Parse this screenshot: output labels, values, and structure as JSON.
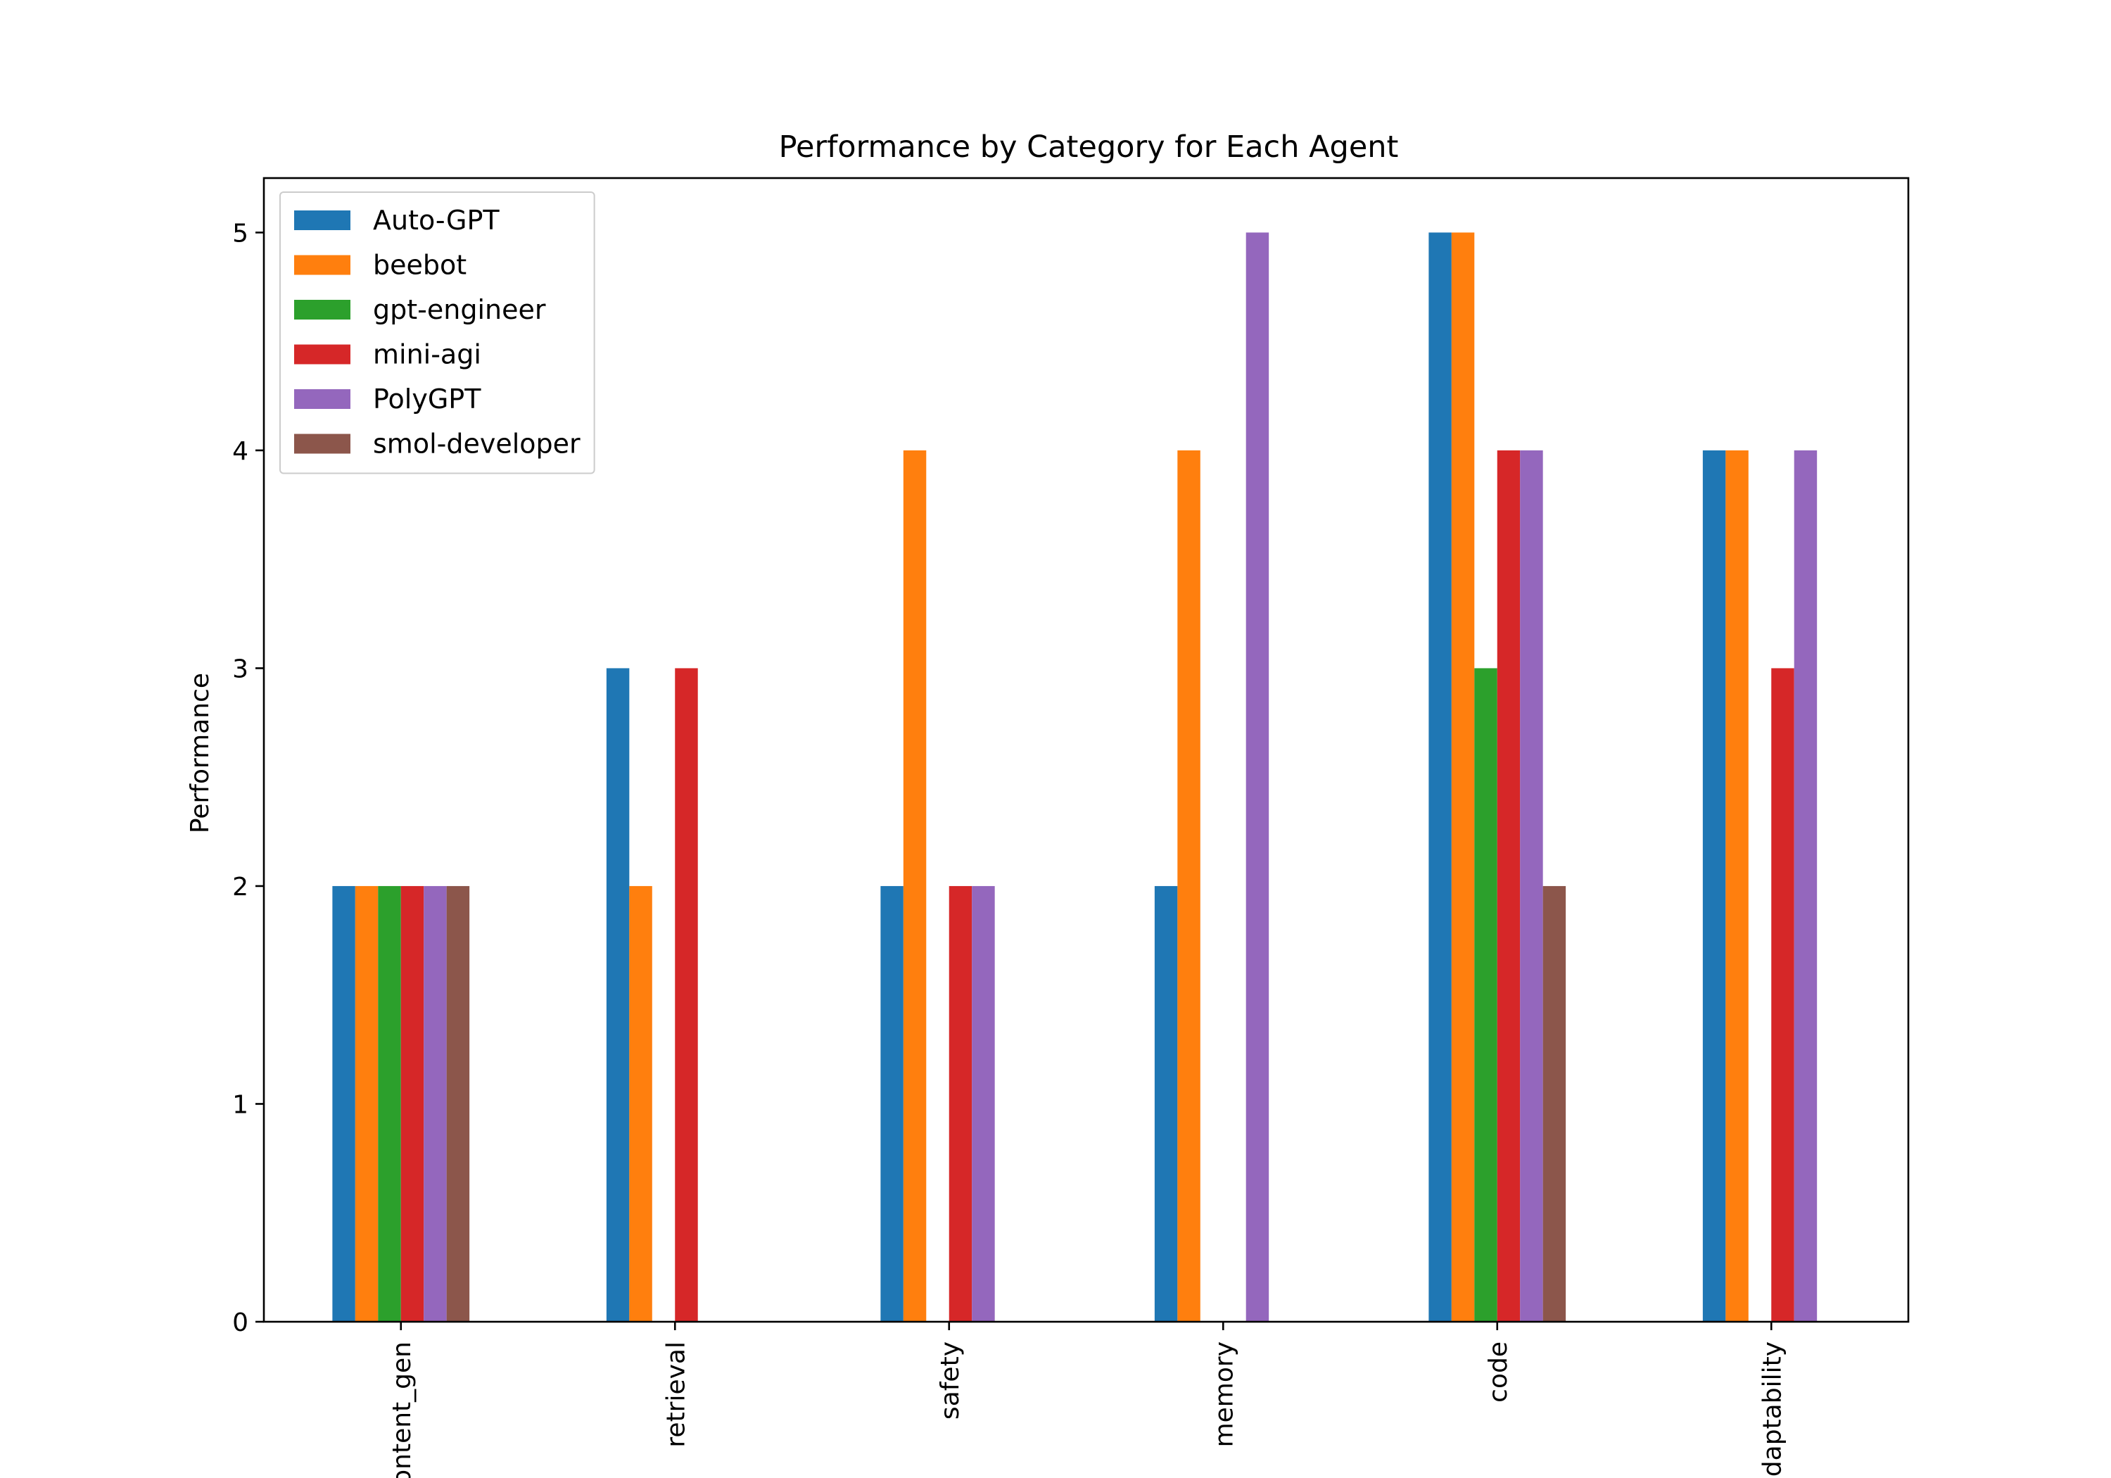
{
  "chart_data": {
    "type": "bar",
    "title": "Performance by Category for Each Agent",
    "xlabel": "",
    "ylabel": "Performance",
    "ylim": [
      0,
      5.25
    ],
    "yticks": [
      0,
      1,
      2,
      3,
      4,
      5
    ],
    "grid": false,
    "legend_position": "upper-left",
    "categories": [
      "content_gen",
      "retrieval",
      "safety",
      "memory",
      "code",
      "adaptability"
    ],
    "series": [
      {
        "name": "Auto-GPT",
        "color": "#1f77b4",
        "values": [
          2,
          3,
          2,
          2,
          5,
          4
        ]
      },
      {
        "name": "beebot",
        "color": "#ff7f0e",
        "values": [
          2,
          2,
          4,
          4,
          5,
          4
        ]
      },
      {
        "name": "gpt-engineer",
        "color": "#2ca02c",
        "values": [
          2,
          0,
          0,
          0,
          3,
          0
        ]
      },
      {
        "name": "mini-agi",
        "color": "#d62728",
        "values": [
          2,
          3,
          2,
          0,
          4,
          3
        ]
      },
      {
        "name": "PolyGPT",
        "color": "#9467bd",
        "values": [
          2,
          0,
          2,
          5,
          4,
          4
        ]
      },
      {
        "name": "smol-developer",
        "color": "#8c564b",
        "values": [
          2,
          0,
          0,
          0,
          2,
          0
        ]
      }
    ]
  }
}
